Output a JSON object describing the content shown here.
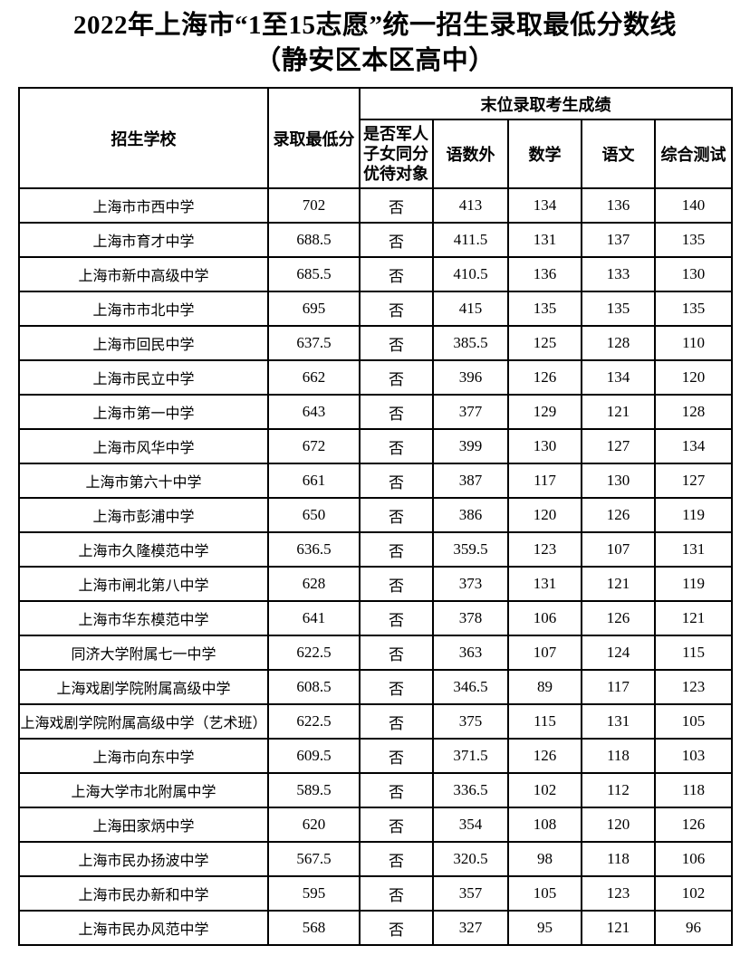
{
  "page_title": {
    "line1": "2022年上海市“1至15志愿”统一招生录取最低分数线",
    "line2": "（静安区本区高中）"
  },
  "table": {
    "header": {
      "school": "招生学校",
      "min_score": "录取最低分",
      "group": "末位录取考生成绩",
      "sub": [
        "是否军人子女同分优待对象",
        "语数外",
        "数学",
        "语文",
        "综合测试"
      ]
    },
    "rows": [
      [
        "上海市市西中学",
        "702",
        "否",
        "413",
        "134",
        "136",
        "140"
      ],
      [
        "上海市育才中学",
        "688.5",
        "否",
        "411.5",
        "131",
        "137",
        "135"
      ],
      [
        "上海市新中高级中学",
        "685.5",
        "否",
        "410.5",
        "136",
        "133",
        "130"
      ],
      [
        "上海市市北中学",
        "695",
        "否",
        "415",
        "135",
        "135",
        "135"
      ],
      [
        "上海市回民中学",
        "637.5",
        "否",
        "385.5",
        "125",
        "128",
        "110"
      ],
      [
        "上海市民立中学",
        "662",
        "否",
        "396",
        "126",
        "134",
        "120"
      ],
      [
        "上海市第一中学",
        "643",
        "否",
        "377",
        "129",
        "121",
        "128"
      ],
      [
        "上海市风华中学",
        "672",
        "否",
        "399",
        "130",
        "127",
        "134"
      ],
      [
        "上海市第六十中学",
        "661",
        "否",
        "387",
        "117",
        "130",
        "127"
      ],
      [
        "上海市彭浦中学",
        "650",
        "否",
        "386",
        "120",
        "126",
        "119"
      ],
      [
        "上海市久隆模范中学",
        "636.5",
        "否",
        "359.5",
        "123",
        "107",
        "131"
      ],
      [
        "上海市闸北第八中学",
        "628",
        "否",
        "373",
        "131",
        "121",
        "119"
      ],
      [
        "上海市华东模范中学",
        "641",
        "否",
        "378",
        "106",
        "126",
        "121"
      ],
      [
        "同济大学附属七一中学",
        "622.5",
        "否",
        "363",
        "107",
        "124",
        "115"
      ],
      [
        "上海戏剧学院附属高级中学",
        "608.5",
        "否",
        "346.5",
        "89",
        "117",
        "123"
      ],
      [
        "上海戏剧学院附属高级中学（艺术班）",
        "622.5",
        "否",
        "375",
        "115",
        "131",
        "105"
      ],
      [
        "上海市向东中学",
        "609.5",
        "否",
        "371.5",
        "126",
        "118",
        "103"
      ],
      [
        "上海大学市北附属中学",
        "589.5",
        "否",
        "336.5",
        "102",
        "112",
        "118"
      ],
      [
        "上海田家炳中学",
        "620",
        "否",
        "354",
        "108",
        "120",
        "126"
      ],
      [
        "上海市民办扬波中学",
        "567.5",
        "否",
        "320.5",
        "98",
        "118",
        "106"
      ],
      [
        "上海市民办新和中学",
        "595",
        "否",
        "357",
        "105",
        "123",
        "102"
      ],
      [
        "上海市民办风范中学",
        "568",
        "否",
        "327",
        "95",
        "121",
        "96"
      ]
    ]
  },
  "colors": {
    "text": "#000000",
    "border": "#000000",
    "background": "#ffffff"
  }
}
